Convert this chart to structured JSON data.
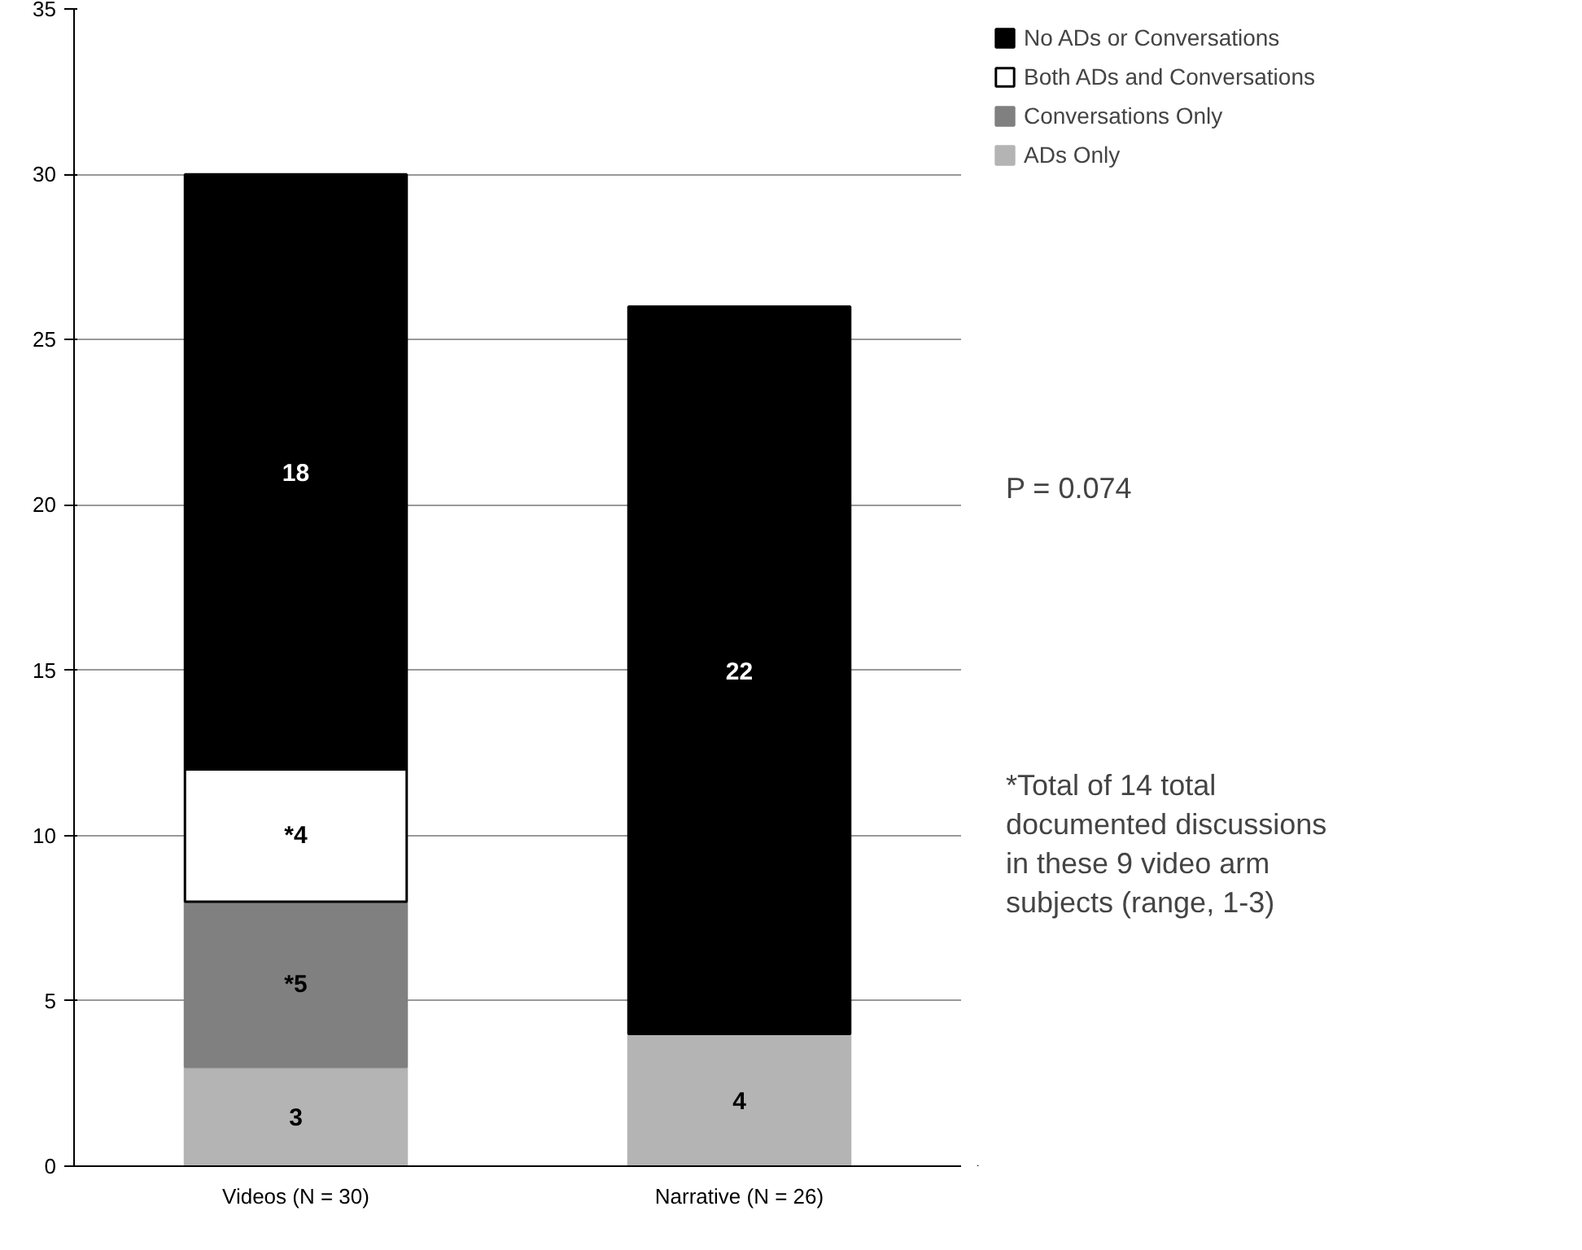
{
  "chart_data": {
    "type": "bar",
    "stacked": true,
    "categories": [
      "Videos (N = 30)",
      "Narrative (N = 26)"
    ],
    "series": [
      {
        "name": "ADs Only",
        "color": "#b4b4b4",
        "values": [
          3,
          4
        ],
        "value_labels": [
          "3",
          "4"
        ]
      },
      {
        "name": "Conversations Only",
        "color": "#808080",
        "values": [
          5,
          0
        ],
        "value_labels": [
          "*5",
          null
        ]
      },
      {
        "name": "Both ADs and Conversations",
        "color": "#ffffff",
        "values": [
          4,
          0
        ],
        "value_labels": [
          "*4",
          null
        ]
      },
      {
        "name": "No ADs or Conversations",
        "color": "#000000",
        "values": [
          18,
          22
        ],
        "value_labels": [
          "18",
          "22"
        ]
      }
    ],
    "ylim": [
      0,
      35
    ],
    "yticks": [
      0,
      5,
      10,
      15,
      20,
      25,
      30,
      35
    ],
    "grid": "y",
    "legend": "right",
    "annotations": [
      "P = 0.074",
      "*Total of 14 total documented discussions in these 9 video arm subjects (range, 1-3)"
    ]
  }
}
